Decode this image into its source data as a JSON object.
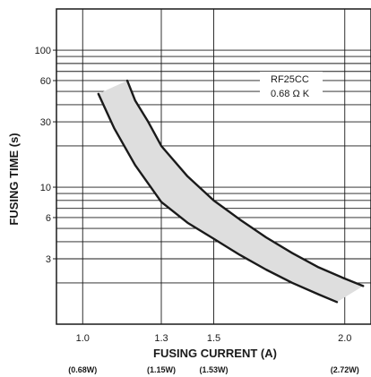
{
  "chart_data": {
    "type": "area",
    "xlabel": "FUSING CURRENT (A)",
    "ylabel": "FUSING TIME (s)",
    "x_scale": "linear",
    "y_scale": "log",
    "xlim": [
      0.9,
      2.1
    ],
    "ylim": [
      1,
      200
    ],
    "grid": true,
    "x_ticks": [
      {
        "value": 1.0,
        "label": "1.0",
        "power": "(0.68W)"
      },
      {
        "value": 1.3,
        "label": "1.3",
        "power": "(1.15W)"
      },
      {
        "value": 1.5,
        "label": "1.5",
        "power": "(1.53W)"
      },
      {
        "value": 2.0,
        "label": "2.0",
        "power": "(2.72W)"
      }
    ],
    "y_ticks": [
      {
        "value": 100,
        "label": "100"
      },
      {
        "value": 60,
        "label": "60"
      },
      {
        "value": 30,
        "label": "30"
      },
      {
        "value": 10,
        "label": "10"
      },
      {
        "value": 6,
        "label": "6"
      },
      {
        "value": 3,
        "label": "3"
      }
    ],
    "series": [
      {
        "x": [
          1.06,
          1.12,
          1.2,
          1.3,
          1.4,
          1.5,
          1.6,
          1.7,
          1.8,
          1.9,
          1.97
        ],
        "y": [
          48,
          27,
          14.5,
          7.8,
          5.5,
          4.2,
          3.2,
          2.5,
          2.0,
          1.65,
          1.45
        ]
      },
      {
        "x": [
          1.17,
          1.2,
          1.25,
          1.3,
          1.4,
          1.5,
          1.6,
          1.7,
          1.8,
          1.9,
          2.0,
          2.07
        ],
        "y": [
          60,
          43,
          30,
          20,
          12,
          8.0,
          5.8,
          4.3,
          3.3,
          2.6,
          2.15,
          1.9
        ]
      }
    ],
    "annotations": [
      {
        "text": "RF25CC"
      },
      {
        "text": "0.68 Ω K"
      }
    ]
  }
}
